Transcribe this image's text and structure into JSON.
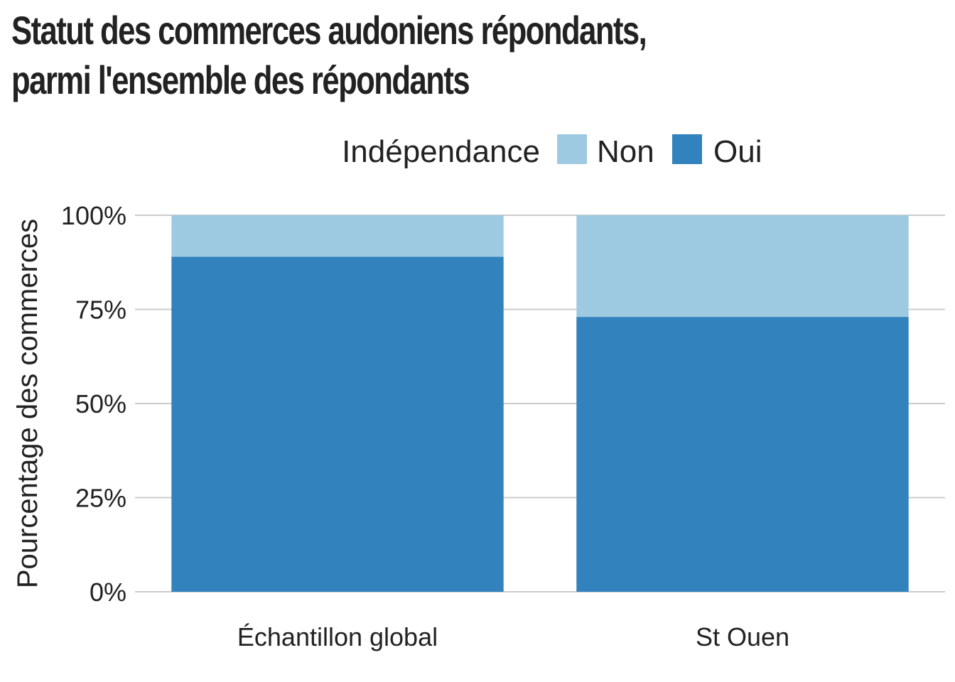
{
  "chart_data": {
    "type": "bar",
    "stacked": true,
    "title_lines": [
      "Statut des commerces audoniens répondants,",
      "parmi l'ensemble des répondants"
    ],
    "xlabel": "",
    "ylabel": "Pourcentage des commerces",
    "categories": [
      "Échantillon global",
      "St Ouen"
    ],
    "series": [
      {
        "name": "Oui",
        "color": "#3182bd",
        "values": [
          89,
          73
        ]
      },
      {
        "name": "Non",
        "color": "#9ecae1",
        "values": [
          11,
          27
        ]
      }
    ],
    "legend": {
      "title": "Indépendance",
      "position": "top",
      "entries": [
        "Non",
        "Oui"
      ]
    },
    "ylim": [
      0,
      100
    ],
    "yticks": [
      0,
      25,
      50,
      75,
      100
    ],
    "ytick_labels": [
      "0%",
      "25%",
      "50%",
      "75%",
      "100%"
    ],
    "grid": "horizontal",
    "grid_color": "#cccccc"
  }
}
